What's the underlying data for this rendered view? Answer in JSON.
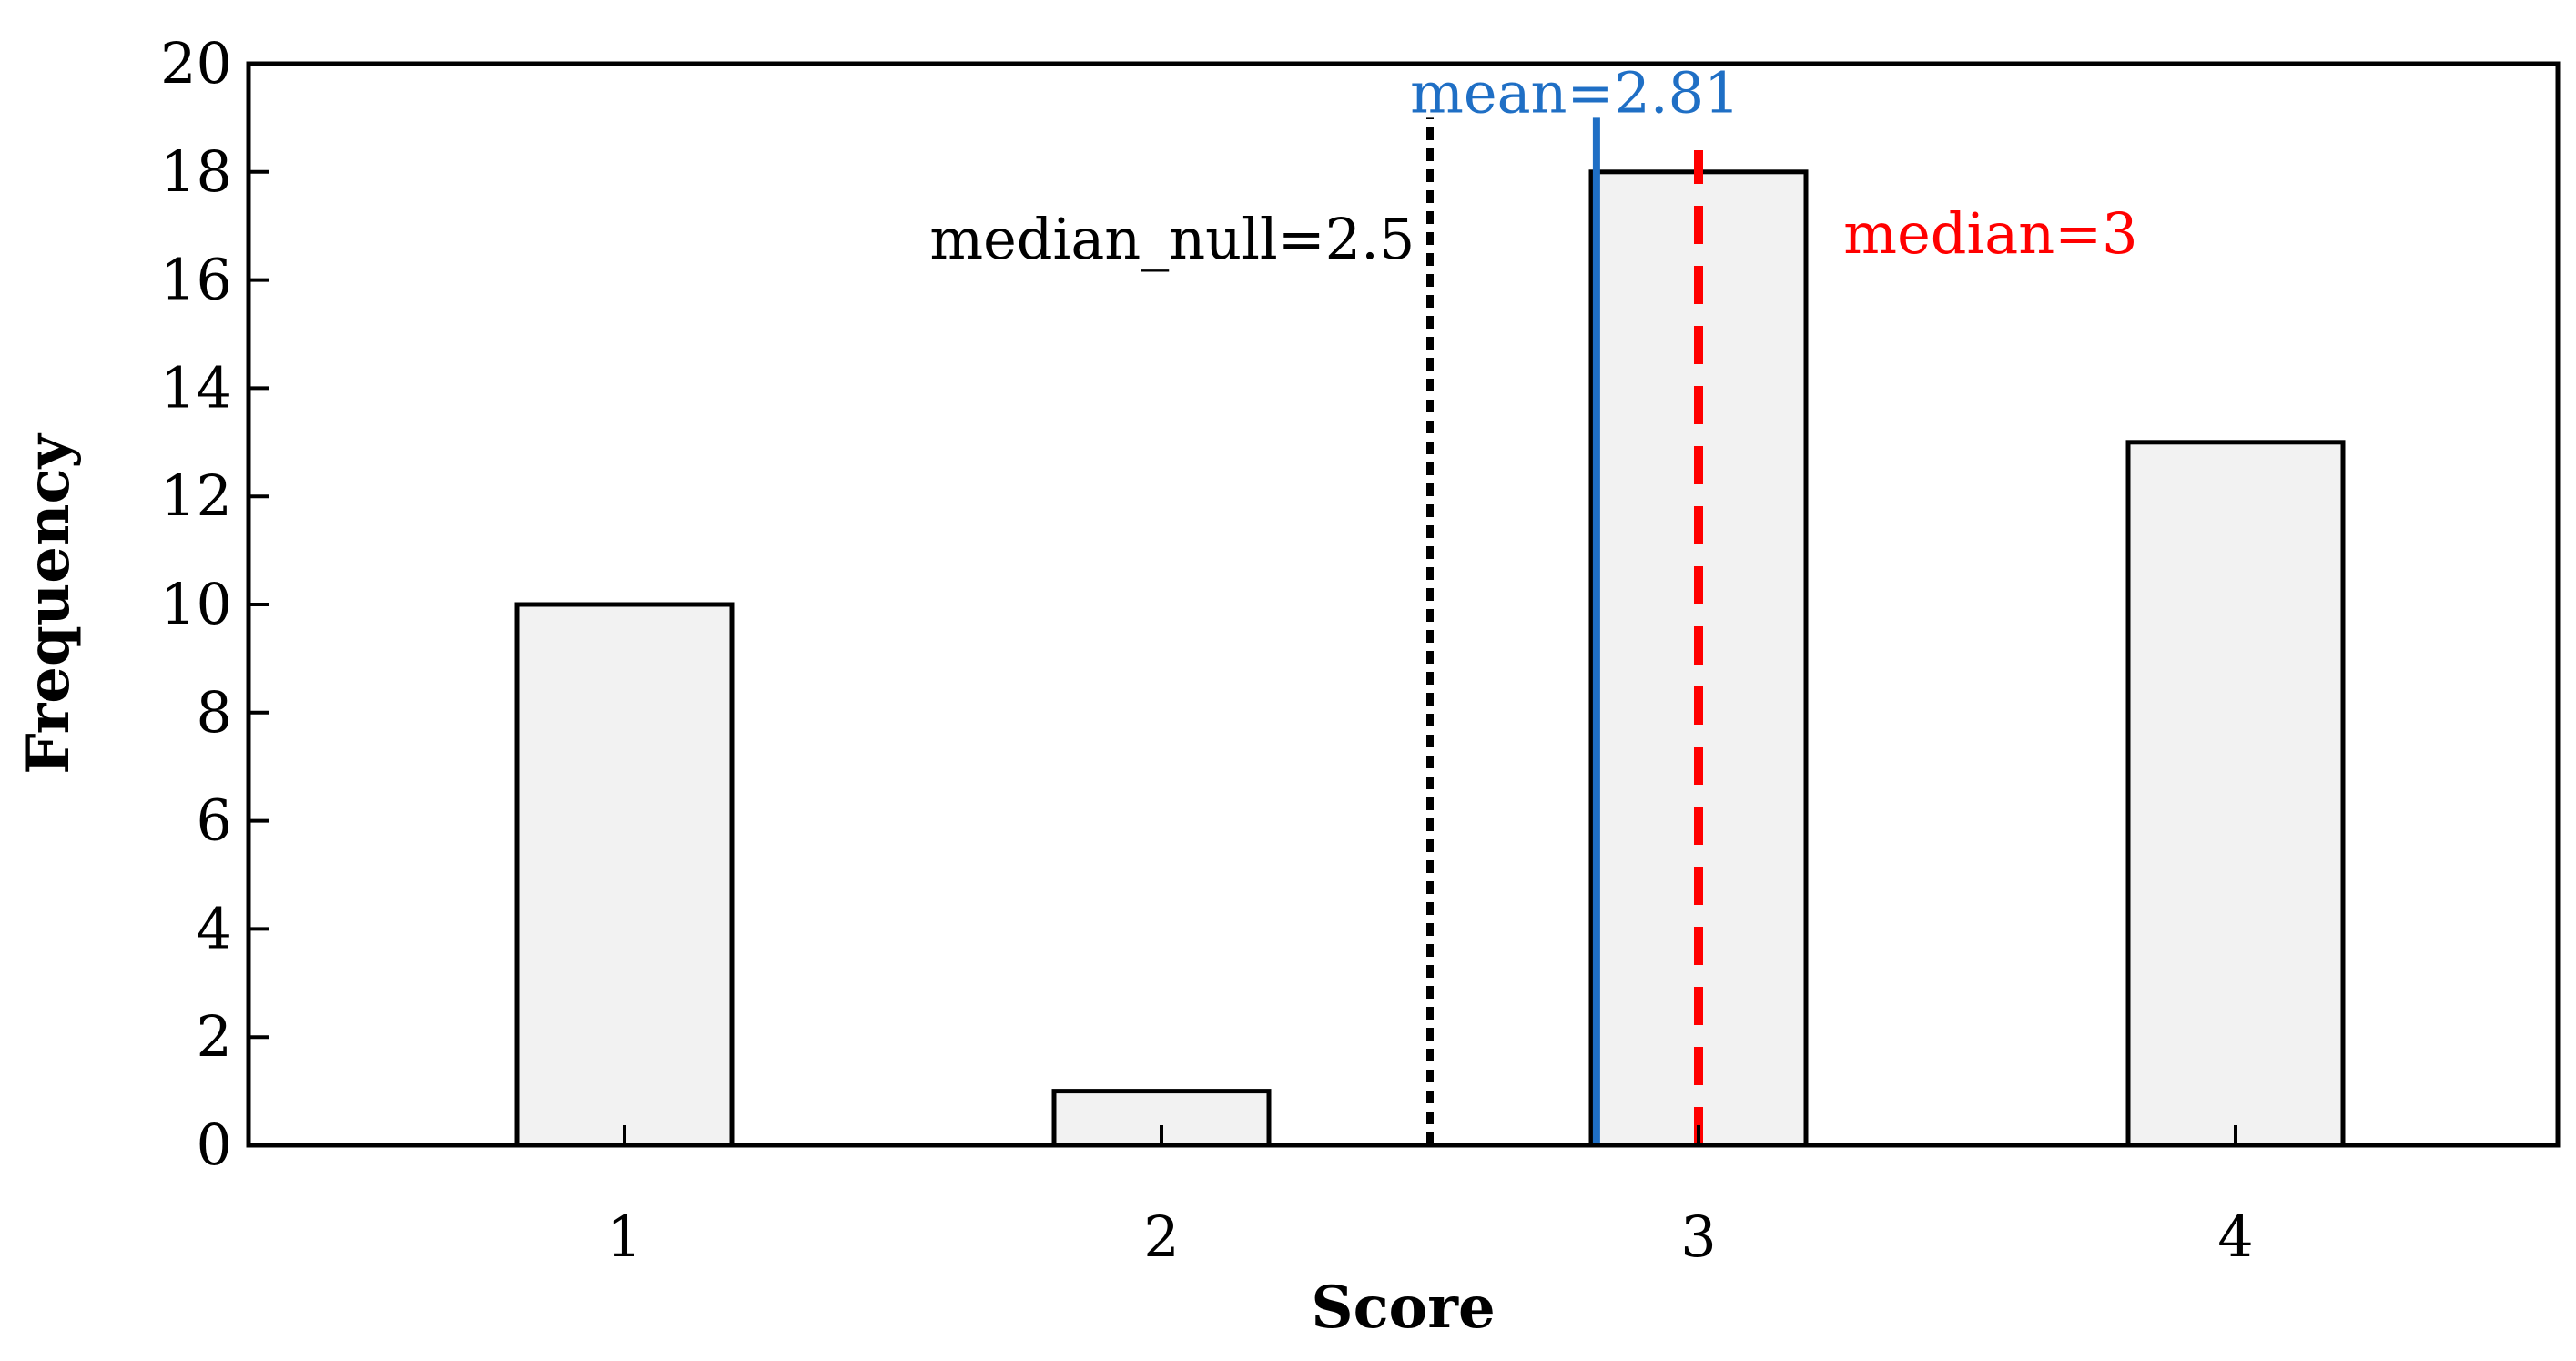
{
  "chart_data": {
    "type": "bar",
    "categories": [
      "1",
      "2",
      "3",
      "4"
    ],
    "x": [
      1,
      2,
      3,
      4
    ],
    "values": [
      10,
      1,
      18,
      13
    ],
    "xlabel": "Score",
    "ylabel": "Frequency",
    "xlim": [
      0.3,
      4.6
    ],
    "ylim": [
      0,
      20
    ],
    "yticks": [
      0,
      2,
      4,
      6,
      8,
      10,
      12,
      14,
      16,
      18,
      20
    ],
    "bar_width": 0.4,
    "grid": false,
    "legend": "none",
    "colors": {
      "bar_fill": "#f2f2f2",
      "bar_stroke": "#000000",
      "median_null": "#000000",
      "mean": "#1f6fc5",
      "median": "#ff0000"
    },
    "reference_lines": [
      {
        "id": "median-null",
        "x": 2.5,
        "label": "median_null=2.5",
        "style": "dotted",
        "color": "#000000",
        "label_x": 2.02,
        "label_y": 16.4,
        "label_anchor": "middle"
      },
      {
        "id": "mean",
        "x": 2.81,
        "label": "mean=2.81",
        "style": "solid",
        "color": "#1f6fc5",
        "label_x": 2.77,
        "label_y": 19.1,
        "label_anchor": "middle"
      },
      {
        "id": "median",
        "x": 3.0,
        "label": "median=3",
        "style": "dashed",
        "color": "#ff0000",
        "label_x": 3.27,
        "label_y": 16.5,
        "label_anchor": "start"
      }
    ]
  }
}
